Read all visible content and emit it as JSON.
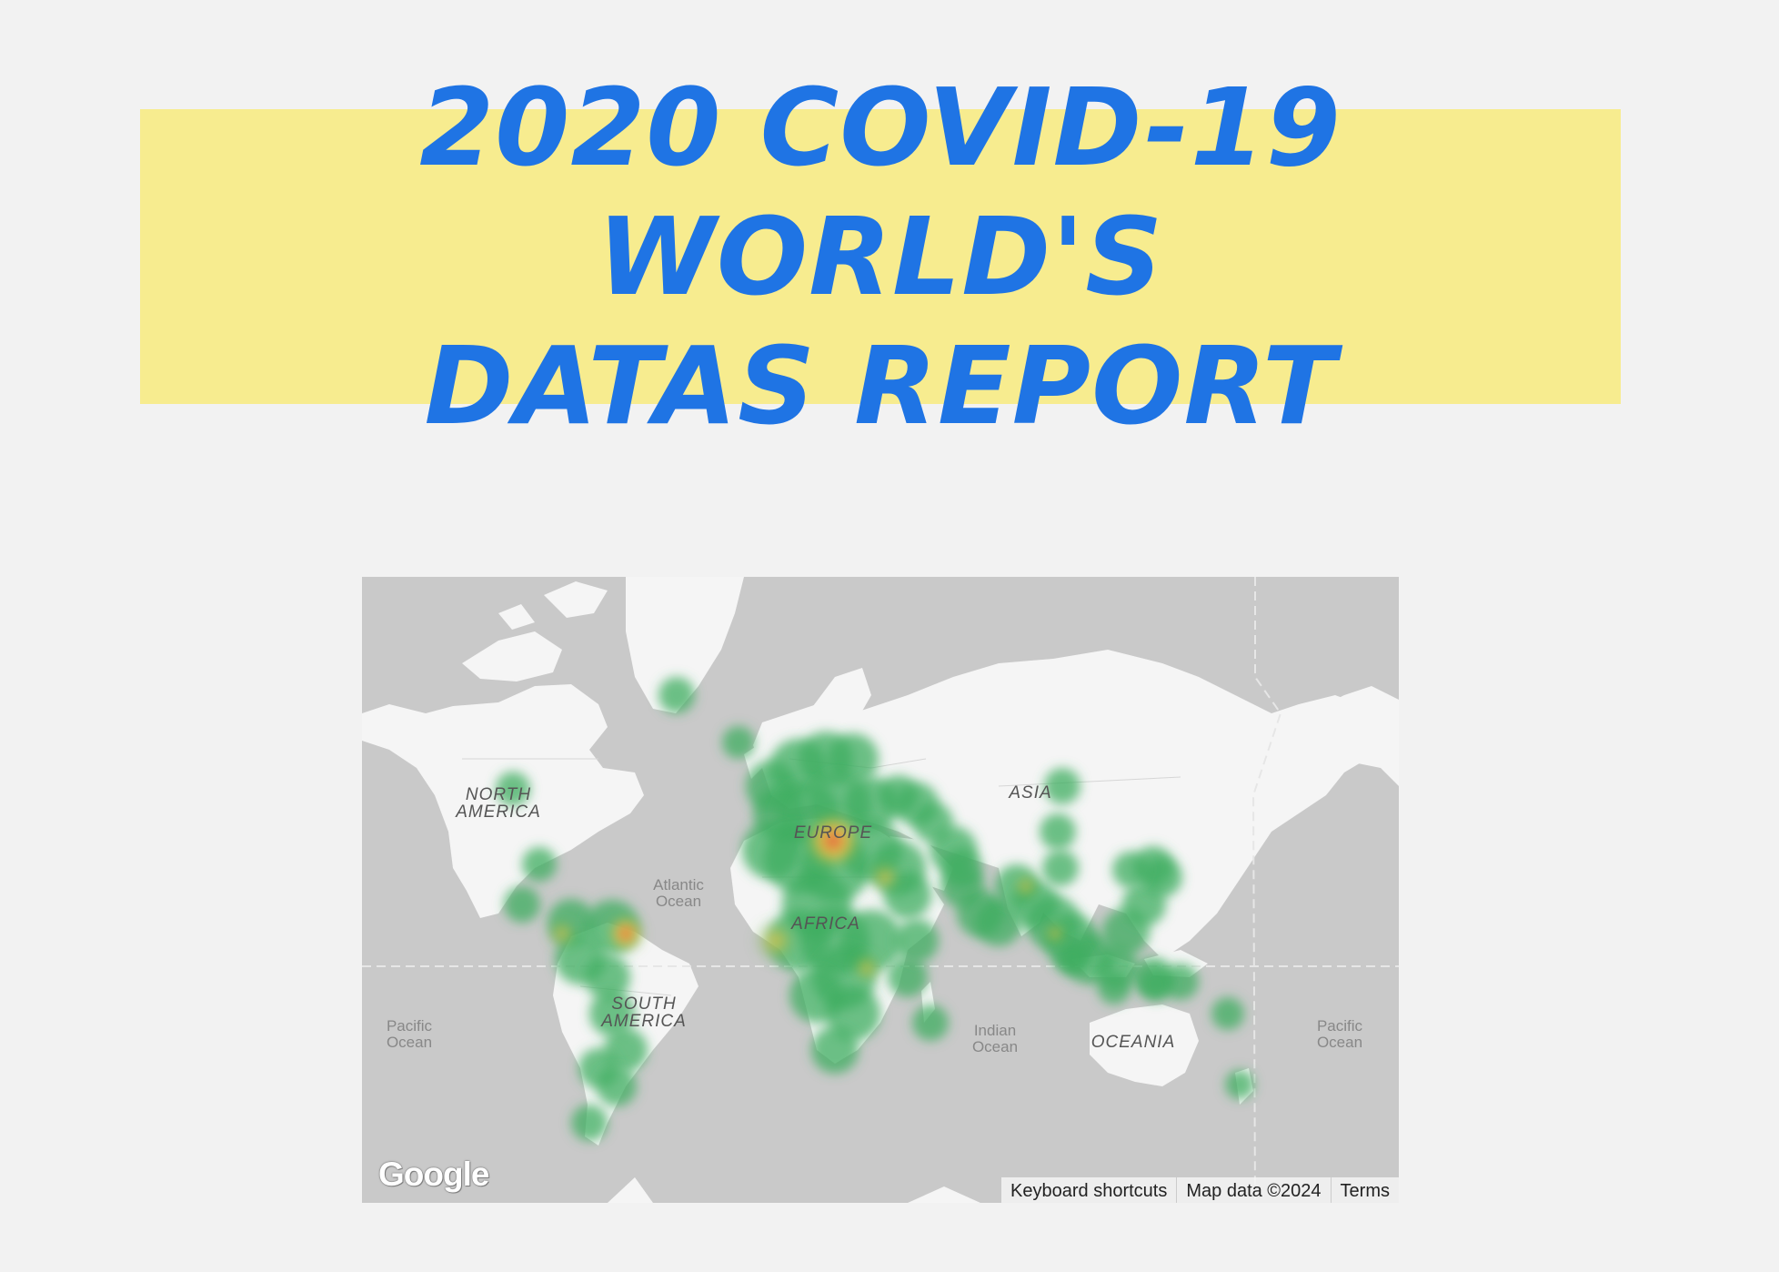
{
  "report": {
    "title": "2020 COVID-19 WORLD'S\nDATAS REPORT",
    "title_color": "#1f74e4",
    "banner_color": "#f7ec8f"
  },
  "map": {
    "background_color": "#c9c9c9",
    "land_color": "#f5f5f5",
    "labels": {
      "continents": [
        {
          "name": "north-america",
          "lines": [
            "NORTH",
            "AMERICA"
          ]
        },
        {
          "name": "south-america",
          "lines": [
            "SOUTH",
            "AMERICA"
          ]
        },
        {
          "name": "europe",
          "lines": [
            "EUROPE"
          ]
        },
        {
          "name": "africa",
          "lines": [
            "AFRICA"
          ]
        },
        {
          "name": "asia",
          "lines": [
            "ASIA"
          ]
        },
        {
          "name": "oceania",
          "lines": [
            "OCEANIA"
          ]
        }
      ],
      "oceans": [
        {
          "name": "atlantic",
          "lines": [
            "Atlantic",
            "Ocean"
          ]
        },
        {
          "name": "indian",
          "lines": [
            "Indian",
            "Ocean"
          ]
        },
        {
          "name": "pacific-west",
          "lines": [
            "Pacific",
            "Ocean"
          ]
        },
        {
          "name": "pacific-east",
          "lines": [
            "Pacific",
            "Ocean"
          ]
        }
      ]
    },
    "logo": "Google",
    "attribution": {
      "keyboard_shortcuts": "Keyboard shortcuts",
      "map_data": "Map data ©2024",
      "terms": "Terms"
    },
    "heatmap": {
      "gradient": [
        "#3fae5f",
        "#f4c542",
        "#e8453c"
      ],
      "hotspots": [
        {
          "region": "europe",
          "lon": 15,
          "lat": 51,
          "level": 1.0
        },
        {
          "region": "colombia",
          "lon": -72,
          "lat": 5,
          "level": 0.9
        },
        {
          "region": "ecuador",
          "lon": -80,
          "lat": 1,
          "level": 0.6
        },
        {
          "region": "west-africa",
          "lon": -5,
          "lat": 8,
          "level": 0.6
        },
        {
          "region": "middle-east",
          "lon": 35,
          "lat": 32,
          "level": 0.55
        },
        {
          "region": "east-africa",
          "lon": 33,
          "lat": 0,
          "level": 0.45
        },
        {
          "region": "india",
          "lon": 78,
          "lat": 22,
          "level": 0.35
        },
        {
          "region": "indonesia",
          "lon": 110,
          "lat": 0,
          "level": 0.3
        }
      ]
    }
  }
}
